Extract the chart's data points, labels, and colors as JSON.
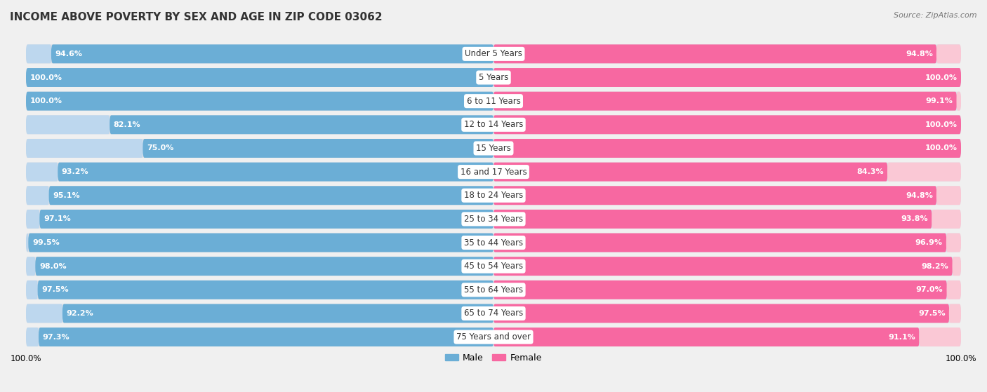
{
  "title": "INCOME ABOVE POVERTY BY SEX AND AGE IN ZIP CODE 03062",
  "source": "Source: ZipAtlas.com",
  "categories": [
    "Under 5 Years",
    "5 Years",
    "6 to 11 Years",
    "12 to 14 Years",
    "15 Years",
    "16 and 17 Years",
    "18 to 24 Years",
    "25 to 34 Years",
    "35 to 44 Years",
    "45 to 54 Years",
    "55 to 64 Years",
    "65 to 74 Years",
    "75 Years and over"
  ],
  "male_values": [
    94.6,
    100.0,
    100.0,
    82.1,
    75.0,
    93.2,
    95.1,
    97.1,
    99.5,
    98.0,
    97.5,
    92.2,
    97.3
  ],
  "female_values": [
    94.8,
    100.0,
    99.1,
    100.0,
    100.0,
    84.3,
    94.8,
    93.8,
    96.9,
    98.2,
    97.0,
    97.5,
    91.1
  ],
  "male_color": "#6baed6",
  "female_color": "#f768a1",
  "male_light_color": "#bdd7ee",
  "female_light_color": "#fac8d5",
  "background_color": "#f0f0f0",
  "row_bg_color": "#e8e8e8",
  "xlabel_bottom_left": "100.0%",
  "xlabel_bottom_right": "100.0%",
  "legend_male": "Male",
  "legend_female": "Female",
  "title_fontsize": 11,
  "value_fontsize": 8,
  "label_fontsize": 8.5
}
